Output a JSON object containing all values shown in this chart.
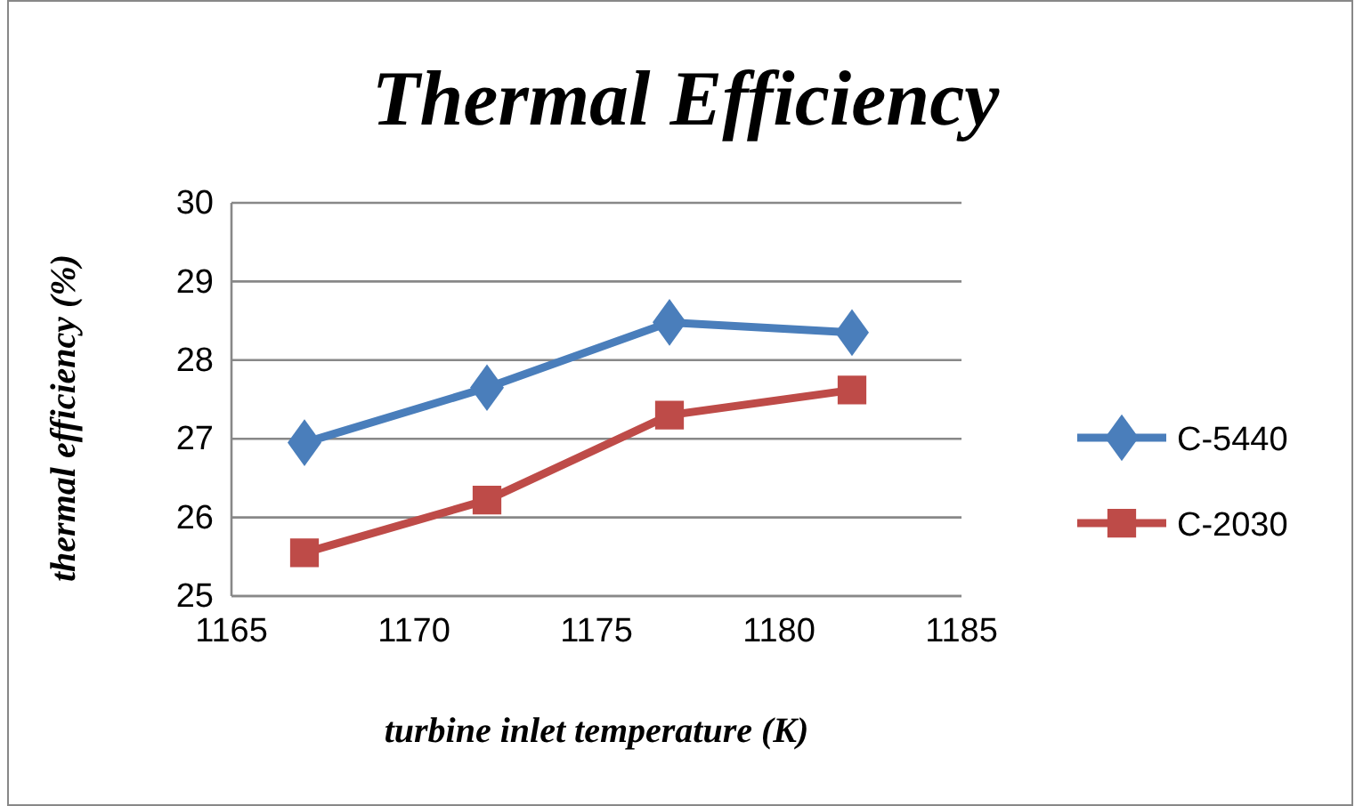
{
  "chart_data": {
    "type": "line",
    "title": "Thermal Efficiency",
    "xlabel": "turbine inlet temperature (K)",
    "ylabel": "thermal efficiency (%)",
    "x": [
      1167,
      1172,
      1177,
      1182
    ],
    "series": [
      {
        "name": "C-5440",
        "color": "#4a7ebb",
        "marker": "diamond",
        "values": [
          26.95,
          27.65,
          28.48,
          28.35
        ]
      },
      {
        "name": "C-2030",
        "color": "#be4b48",
        "marker": "square",
        "values": [
          25.55,
          26.22,
          27.3,
          27.62
        ]
      }
    ],
    "xlim": [
      1165,
      1185
    ],
    "xticks": [
      1165,
      1170,
      1175,
      1180,
      1185
    ],
    "ylim": [
      25,
      30
    ],
    "yticks": [
      25,
      26,
      27,
      28,
      29,
      30
    ],
    "grid": "y",
    "legend": "right",
    "line_style": "solid"
  }
}
